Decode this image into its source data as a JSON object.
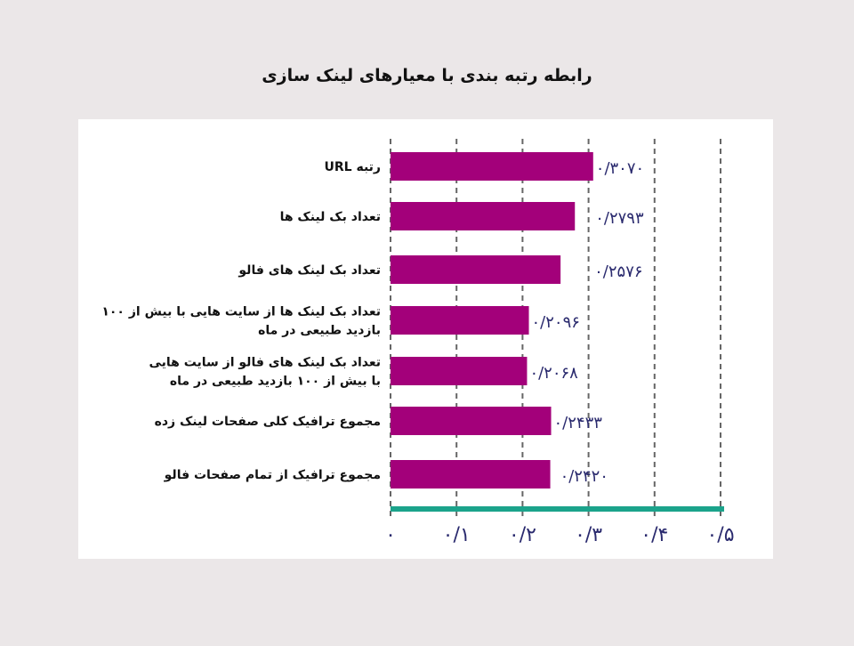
{
  "chart_data": {
    "type": "bar",
    "orientation": "horizontal",
    "title": "رابطه رتبه بندی با معیارهای لینک سازی",
    "categories": [
      [
        "رتبه URL"
      ],
      [
        "تعداد بک لینک ها"
      ],
      [
        "تعداد بک لینک های فالو"
      ],
      [
        "تعداد بک لینک ها از سایت هایی با بیش از ۱۰۰",
        "بازدید طبیعی در ماه"
      ],
      [
        "تعداد بک لینک های فالو از سایت هایی",
        "با بیش از ۱۰۰ بازدید طبیعی در ماه"
      ],
      [
        "مجموع ترافیک کلی صفحات لینک زده"
      ],
      [
        "مجموع ترافیک از تمام صفحات فالو"
      ]
    ],
    "values": [
      0.307,
      0.2793,
      0.2576,
      0.2096,
      0.2068,
      0.2433,
      0.242
    ],
    "value_labels": [
      "۰/۳۰۷۰",
      "۰/۲۷۹۳",
      "۰/۲۵۷۶",
      "۰/۲۰۹۶",
      "۰/۲۰۶۸",
      "۰/۲۴۳۳",
      "۰/۲۴۲۰"
    ],
    "xticks": [
      0,
      0.1,
      0.2,
      0.3,
      0.4,
      0.5
    ],
    "xtick_labels": [
      "۰",
      "۰/۱",
      "۰/۲",
      "۰/۳",
      "۰/۴",
      "۰/۵"
    ],
    "xlim": [
      0,
      0.5
    ],
    "grid": true,
    "colors": {
      "bar": "#a3007a",
      "axis": "#1ba38b",
      "grid": "#666666",
      "value_label": "#2a2a6e",
      "tick_label": "#2a2a6e",
      "category_label": "#111111"
    }
  }
}
